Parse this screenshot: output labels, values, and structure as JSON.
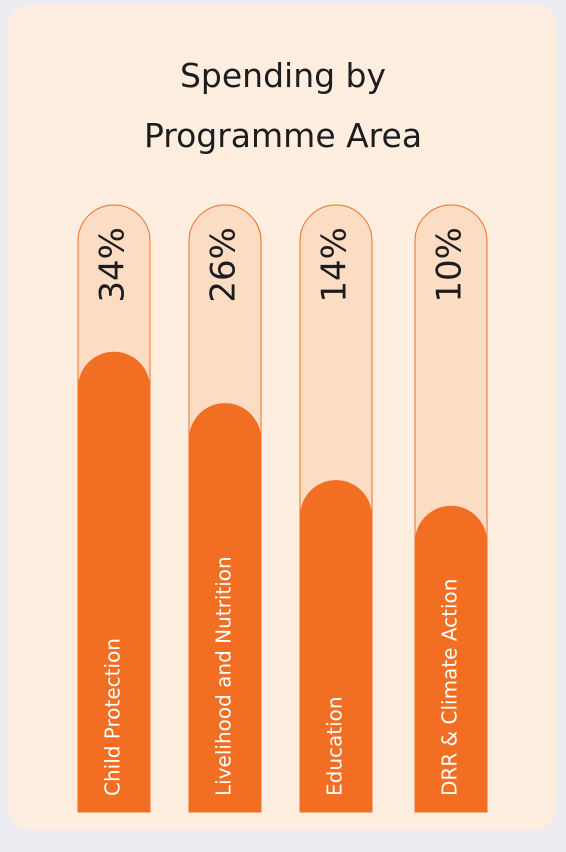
{
  "chart_data": {
    "type": "bar",
    "title": "Spending by Programme Area",
    "categories": [
      "Child Protection",
      "Livelihood and Nutrition",
      "Education",
      "DRR & Climate Action"
    ],
    "values": [
      34,
      26,
      14,
      10
    ],
    "value_labels": [
      "34%",
      "26%",
      "14%",
      "10%"
    ],
    "color": "#f26e22",
    "track_color": "#fddcc4"
  }
}
